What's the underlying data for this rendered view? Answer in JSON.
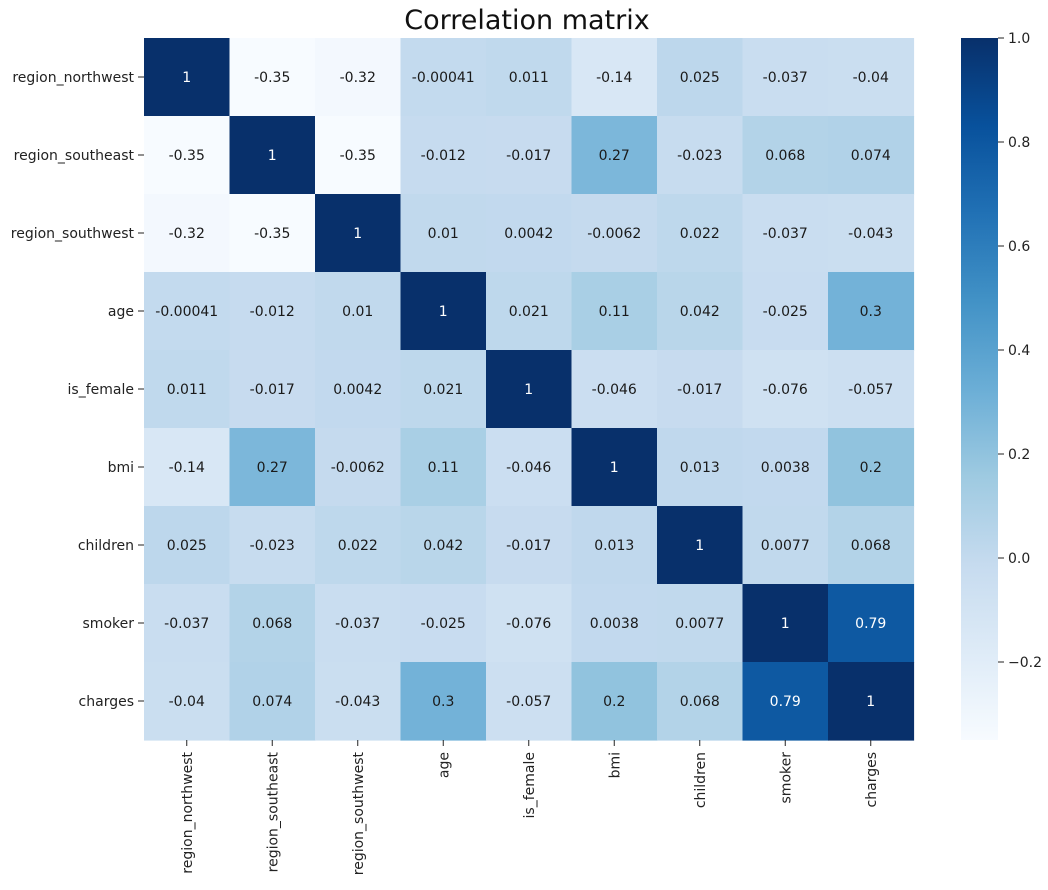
{
  "chart_data": {
    "type": "heatmap",
    "title": "Correlation matrix",
    "row_labels": [
      "region_northwest",
      "region_southeast",
      "region_southwest",
      "age",
      "is_female",
      "bmi",
      "children",
      "smoker",
      "charges"
    ],
    "col_labels": [
      "region_northwest",
      "region_southeast",
      "region_southwest",
      "age",
      "is_female",
      "bmi",
      "children",
      "smoker",
      "charges"
    ],
    "cell_labels": [
      [
        "1",
        "-0.35",
        "-0.32",
        "-0.00041",
        "0.011",
        "-0.14",
        "0.025",
        "-0.037",
        "-0.04"
      ],
      [
        "-0.35",
        "1",
        "-0.35",
        "-0.012",
        "-0.017",
        "0.27",
        "-0.023",
        "0.068",
        "0.074"
      ],
      [
        "-0.32",
        "-0.35",
        "1",
        "0.01",
        "0.0042",
        "-0.0062",
        "0.022",
        "-0.037",
        "-0.043"
      ],
      [
        "-0.00041",
        "-0.012",
        "0.01",
        "1",
        "0.021",
        "0.11",
        "0.042",
        "-0.025",
        "0.3"
      ],
      [
        "0.011",
        "-0.017",
        "0.0042",
        "0.021",
        "1",
        "-0.046",
        "-0.017",
        "-0.076",
        "-0.057"
      ],
      [
        "-0.14",
        "0.27",
        "-0.0062",
        "0.11",
        "-0.046",
        "1",
        "0.013",
        "0.0038",
        "0.2"
      ],
      [
        "0.025",
        "-0.023",
        "0.022",
        "0.042",
        "-0.017",
        "0.013",
        "1",
        "0.0077",
        "0.068"
      ],
      [
        "-0.037",
        "0.068",
        "-0.037",
        "-0.025",
        "-0.076",
        "0.0038",
        "0.0077",
        "1",
        "0.79"
      ],
      [
        "-0.04",
        "0.074",
        "-0.043",
        "0.3",
        "-0.057",
        "0.2",
        "0.068",
        "0.79",
        "1"
      ]
    ],
    "colormap": "Blues",
    "colorbar": {
      "range": [
        -0.35,
        1.0
      ],
      "ticks": [
        -0.2,
        0.0,
        0.2,
        0.4,
        0.6,
        0.8,
        1.0
      ],
      "tick_labels": [
        "−0.2",
        "0.0",
        "0.2",
        "0.4",
        "0.6",
        "0.8",
        "1.0"
      ]
    }
  }
}
